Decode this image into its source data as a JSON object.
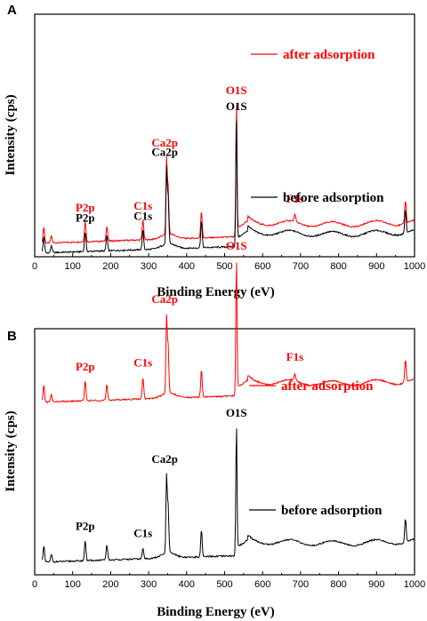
{
  "chart_data": [
    {
      "type": "line",
      "panel_label": "A",
      "xlabel": "Binding Energy (eV)",
      "ylabel": "Intensity (cps)",
      "xlim": [
        0,
        1000
      ],
      "xticks": [
        "0",
        "100",
        "200",
        "300",
        "400",
        "500",
        "600",
        "700",
        "800",
        "900",
        "1000"
      ],
      "grid": false,
      "series": [
        {
          "name": "after adsorption",
          "color": "#ff0000",
          "offset": 170,
          "peaks": [
            {
              "x": 24,
              "height": 18,
              "label": ""
            },
            {
              "x": 44,
              "height": 8,
              "label": ""
            },
            {
              "x": 133,
              "height": 23,
              "label": "P2p"
            },
            {
              "x": 190,
              "height": 17,
              "label": ""
            },
            {
              "x": 285,
              "height": 23,
              "label": "C1s"
            },
            {
              "x": 347,
              "height": 80,
              "label": "Ca2p"
            },
            {
              "x": 351,
              "height": 55,
              "label": ""
            },
            {
              "x": 439,
              "height": 30,
              "label": ""
            },
            {
              "x": 531,
              "height": 145,
              "label": "O1S"
            },
            {
              "x": 685,
              "height": 8,
              "label": "F1s"
            },
            {
              "x": 976,
              "height": 26,
              "label": ""
            }
          ]
        },
        {
          "name": "before adsorption",
          "color": "#000000",
          "offset": 0,
          "peaks": [
            {
              "x": 24,
              "height": 18,
              "label": ""
            },
            {
              "x": 44,
              "height": 8,
              "label": ""
            },
            {
              "x": 133,
              "height": 22,
              "label": "P2p"
            },
            {
              "x": 190,
              "height": 17,
              "label": ""
            },
            {
              "x": 285,
              "height": 22,
              "label": "C1s"
            },
            {
              "x": 347,
              "height": 80,
              "label": "Ca2p"
            },
            {
              "x": 351,
              "height": 55,
              "label": ""
            },
            {
              "x": 439,
              "height": 30,
              "label": ""
            },
            {
              "x": 531,
              "height": 138,
              "label": "O1S"
            },
            {
              "x": 976,
              "height": 26,
              "label": ""
            }
          ]
        }
      ]
    },
    {
      "type": "line",
      "panel_label": "B",
      "xlabel": "Binding Energy (eV)",
      "ylabel": "Intensity (cps)",
      "xlim": [
        0,
        1000
      ],
      "xticks": [
        "0",
        "100",
        "200",
        "300",
        "400",
        "500",
        "600",
        "700",
        "800",
        "900",
        "1000"
      ],
      "grid": false,
      "series": [
        {
          "name": "after adsorption",
          "color": "#ff0000",
          "offset": 180,
          "peaks": [
            {
              "x": 24,
              "height": 18,
              "label": ""
            },
            {
              "x": 44,
              "height": 8,
              "label": ""
            },
            {
              "x": 133,
              "height": 22,
              "label": "P2p"
            },
            {
              "x": 190,
              "height": 17,
              "label": ""
            },
            {
              "x": 285,
              "height": 24,
              "label": "C1s"
            },
            {
              "x": 347,
              "height": 82,
              "label": "Ca2p"
            },
            {
              "x": 351,
              "height": 55,
              "label": ""
            },
            {
              "x": 439,
              "height": 30,
              "label": ""
            },
            {
              "x": 531,
              "height": 148,
              "label": "O1S"
            },
            {
              "x": 685,
              "height": 8,
              "label": "F1s"
            },
            {
              "x": 976,
              "height": 26,
              "label": ""
            }
          ]
        },
        {
          "name": "before adsorption",
          "color": "#000000",
          "offset": 0,
          "peaks": [
            {
              "x": 24,
              "height": 18,
              "label": ""
            },
            {
              "x": 44,
              "height": 8,
              "label": ""
            },
            {
              "x": 133,
              "height": 22,
              "label": "P2p"
            },
            {
              "x": 190,
              "height": 17,
              "label": ""
            },
            {
              "x": 285,
              "height": 12,
              "label": "C1s"
            },
            {
              "x": 347,
              "height": 82,
              "label": "Ca2p"
            },
            {
              "x": 351,
              "height": 55,
              "label": ""
            },
            {
              "x": 439,
              "height": 30,
              "label": ""
            },
            {
              "x": 531,
              "height": 140,
              "label": "O1S"
            },
            {
              "x": 976,
              "height": 26,
              "label": ""
            }
          ]
        }
      ]
    }
  ]
}
